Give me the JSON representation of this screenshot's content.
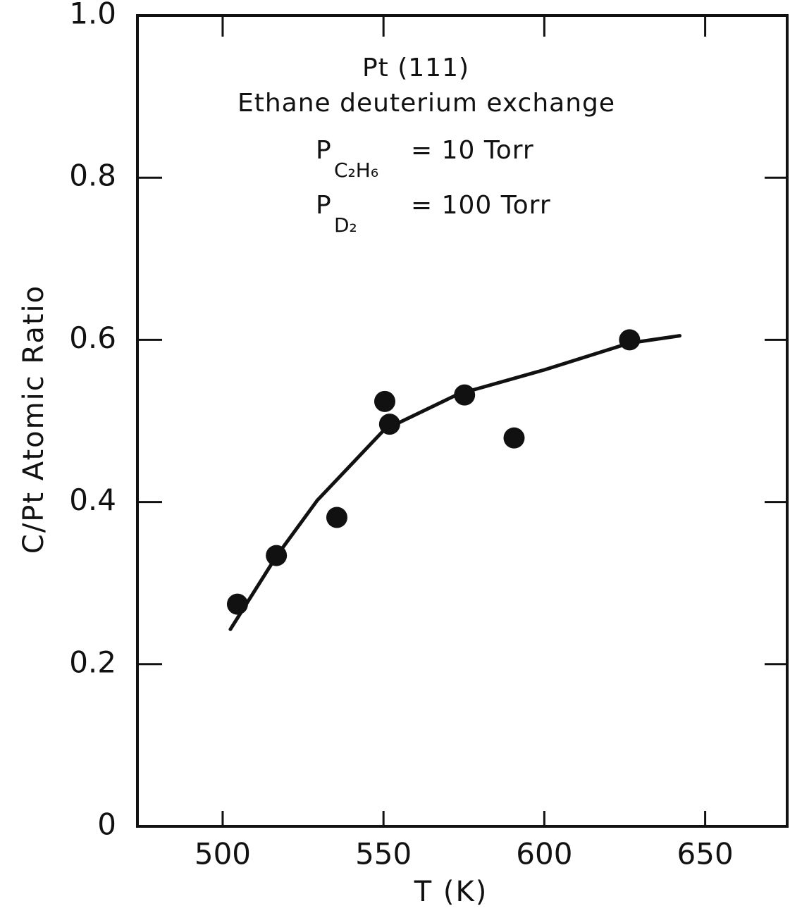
{
  "chart_data": {
    "type": "scatter",
    "x_label": "T (K)",
    "y_label": "C/Pt Atomic Ratio",
    "annotations": [
      {
        "text": "Pt (111)"
      },
      {
        "text": "Ethane deuterium exchange"
      },
      {
        "text": "P",
        "sub": "C₂H₆",
        "rest": "= 10 Torr"
      },
      {
        "text": "P",
        "sub": "D₂",
        "rest": "= 100 Torr"
      }
    ],
    "color": "#111111",
    "xlim": [
      473.5,
      675.5
    ],
    "ylim": [
      0,
      1
    ],
    "xticks": [
      500,
      550,
      600,
      650
    ],
    "yticks": [
      0,
      0.2,
      0.4,
      0.6,
      0.8,
      {
        "value": 1,
        "label": "1.0"
      }
    ],
    "x": [
      504.6,
      516.7,
      535.5,
      550.4,
      551.9,
      575.2,
      590.6,
      626.5
    ],
    "values": [
      0.274,
      0.334,
      0.381,
      0.524,
      0.496,
      0.532,
      0.479,
      0.6
    ],
    "fit": {
      "x": [
        502.4,
        516.7,
        529.4,
        550.2,
        573.2,
        600,
        626.5,
        642.1
      ],
      "values": [
        0.243,
        0.333,
        0.402,
        0.489,
        0.533,
        0.563,
        0.596,
        0.605
      ]
    }
  }
}
